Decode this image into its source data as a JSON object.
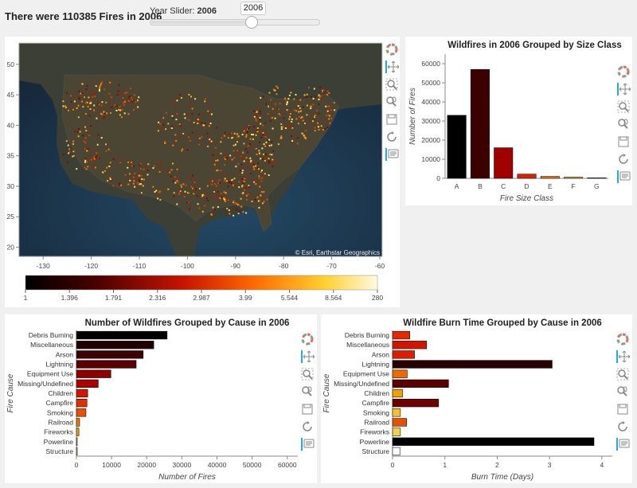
{
  "header": {
    "headline": "There were 110385 Fires in 2006",
    "slider_label": "Year Slider:",
    "slider_value": "2006",
    "slider_tooltip": "2006",
    "slider_position": 0.6
  },
  "toolbar_icons": [
    "bokeh-logo-icon",
    "pan-icon",
    "box-zoom-icon",
    "wheel-zoom-icon",
    "save-icon",
    "reset-icon",
    "hover-icon"
  ],
  "map": {
    "attribution": "© Esri, Earthstar Geographics",
    "colors": {
      "ocean": "#1b2a3a",
      "land": "#3a3f33"
    },
    "colorbar_ticks": [
      "1",
      "1.396",
      "1.791",
      "2.316",
      "2.987",
      "3.99",
      "5.544",
      "8.564",
      "280"
    ]
  },
  "chart_data": [
    {
      "type": "bar",
      "title": "Wildfires in 2006 Grouped by Size Class",
      "xlabel": "Fire Size Class",
      "ylabel": "Number of Fires",
      "categories": [
        "A",
        "B",
        "C",
        "D",
        "E",
        "F",
        "G"
      ],
      "values": [
        33000,
        57000,
        16000,
        2200,
        1000,
        600,
        250
      ],
      "colors": [
        "#000000",
        "#3c0000",
        "#a00000",
        "#dc2000",
        "#f07000",
        "#f09a20",
        "#f0c040"
      ],
      "ylim": [
        0,
        65000
      ],
      "yticks": [
        "0",
        "10000",
        "20000",
        "30000",
        "40000",
        "50000",
        "60000"
      ],
      "ytick_values": [
        0,
        10000,
        20000,
        30000,
        40000,
        50000,
        60000
      ]
    },
    {
      "type": "bar",
      "title": "Number of Wildfires Grouped by Cause in 2006",
      "xlabel": "Number of Fires",
      "ylabel": "Fire Cause",
      "categories": [
        "Debris Burning",
        "Miscellaneous",
        "Arson",
        "Lightning",
        "Equipment Use",
        "Missing/Undefined",
        "Children",
        "Campfire",
        "Smoking",
        "Railroad",
        "Fireworks",
        "Powerline",
        "Structure"
      ],
      "values": [
        25800,
        22000,
        19000,
        17000,
        9800,
        6200,
        3200,
        3000,
        2700,
        900,
        700,
        200,
        50
      ],
      "colors": [
        "#000000",
        "#1e0000",
        "#3c0000",
        "#5a0000",
        "#8c0000",
        "#aa0000",
        "#d21400",
        "#dc3200",
        "#e65000",
        "#ee7800",
        "#f0a000",
        "#f5c840",
        "#fff0b4"
      ],
      "xlim": [
        0,
        63000
      ],
      "xticks": [
        "0",
        "10000",
        "20000",
        "30000",
        "40000",
        "50000",
        "60000"
      ],
      "xtick_values": [
        0,
        10000,
        20000,
        30000,
        40000,
        50000,
        60000
      ]
    },
    {
      "type": "bar",
      "title": "Wildfire Burn Time Grouped by Cause in 2006",
      "xlabel": "Burn Time (Days)",
      "ylabel": "Fire Cause",
      "categories": [
        "Debris Burning",
        "Miscellaneous",
        "Arson",
        "Lightning",
        "Equipment Use",
        "Missing/Undefined",
        "Children",
        "Campfire",
        "Smoking",
        "Railroad",
        "Fireworks",
        "Powerline",
        "Structure"
      ],
      "values": [
        0.33,
        0.65,
        0.42,
        3.05,
        0.28,
        1.07,
        0.19,
        0.88,
        0.15,
        0.27,
        0.15,
        3.85,
        0.14
      ],
      "colors": [
        "#e62800",
        "#d21400",
        "#dc1e00",
        "#280000",
        "#ee6a00",
        "#5a0000",
        "#f0a000",
        "#6e0000",
        "#f5c030",
        "#e65000",
        "#f5d050",
        "#000000",
        "#ffffff"
      ],
      "xlim": [
        0,
        4.2
      ],
      "xticks": [
        "0",
        "1",
        "2",
        "3",
        "4"
      ],
      "xtick_values": [
        0,
        1,
        2,
        3,
        4
      ]
    }
  ]
}
